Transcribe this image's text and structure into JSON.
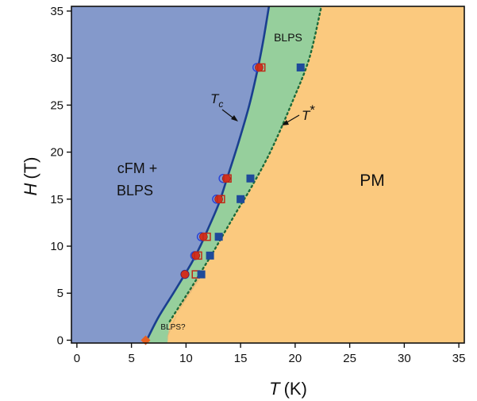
{
  "chart_data": {
    "type": "scatter",
    "x_axis": {
      "label_var": "T",
      "label_unit": "(K)",
      "lim": [
        -0.5,
        35.5
      ],
      "ticks": [
        0,
        5,
        10,
        15,
        20,
        25,
        30,
        35
      ]
    },
    "y_axis": {
      "label_var": "H",
      "label_unit": "(T)",
      "lim": [
        -0.3,
        35.5
      ],
      "ticks": [
        0,
        5,
        10,
        15,
        20,
        25,
        30,
        35
      ]
    },
    "regions": [
      {
        "name": "cFM + BLPS",
        "color": "#8499cb"
      },
      {
        "name": "BLPS",
        "color": "#96cf9c"
      },
      {
        "name": "PM",
        "color": "#fbc97e"
      },
      {
        "name": "BLPS?",
        "color": "#e3b578"
      }
    ],
    "region_labels": {
      "cfm_line1": "cFM +",
      "cfm_line2": "BLPS",
      "blps": "BLPS",
      "pm": "PM",
      "blps_q": "BLPS?"
    },
    "tc_label": "T",
    "tc_sub": "c",
    "tstar_label": "T",
    "tstar_sup": "*",
    "tc_curve": {
      "color": "#1a3f8f",
      "x": [
        6.4,
        7.5,
        9.0,
        10.5,
        11.3,
        12.0,
        13.0,
        13.7,
        14.8,
        15.8,
        16.6,
        17.1,
        17.6
      ],
      "y": [
        0,
        2.5,
        5.3,
        8.2,
        10.0,
        11.8,
        14.5,
        17.0,
        21.0,
        25.0,
        29.0,
        32.0,
        35.5
      ]
    },
    "tstar_curve": {
      "color": "#1e6a3a",
      "x": [
        8.5,
        9.6,
        10.6,
        11.5,
        12.4,
        13.4,
        14.6,
        16.0,
        17.8,
        19.8,
        21.3,
        22.4
      ],
      "y": [
        2.0,
        4.0,
        5.8,
        7.5,
        9.2,
        11.2,
        13.6,
        16.3,
        20.2,
        25.5,
        30.0,
        35.5
      ]
    },
    "series": [
      {
        "marker": "open-circle",
        "color": "#2a45d8",
        "x": [
          9.9,
          10.8,
          11.4,
          12.8,
          13.4,
          16.5
        ],
        "y": [
          7,
          9,
          11,
          15,
          17.2,
          29
        ]
      },
      {
        "marker": "filled-circle",
        "color": "#d03020",
        "x": [
          9.9,
          10.9,
          11.6,
          13.0,
          13.7,
          16.7
        ],
        "y": [
          7,
          9,
          11,
          15,
          17.2,
          29
        ]
      },
      {
        "marker": "open-square",
        "color": "#c02818",
        "x": [
          10.9,
          11.1,
          11.9,
          13.2,
          13.8,
          16.9
        ],
        "y": [
          7,
          9,
          11,
          15,
          17.2,
          29
        ]
      },
      {
        "marker": "filled-square",
        "color": "#1e4a9a",
        "x": [
          11.4,
          12.2,
          13.0,
          15.0,
          15.9,
          20.5
        ],
        "y": [
          7,
          9,
          11,
          15,
          17.2,
          29
        ]
      },
      {
        "marker": "diamond",
        "color": "#e86020",
        "x": [
          6.3
        ],
        "y": [
          0
        ]
      }
    ]
  }
}
